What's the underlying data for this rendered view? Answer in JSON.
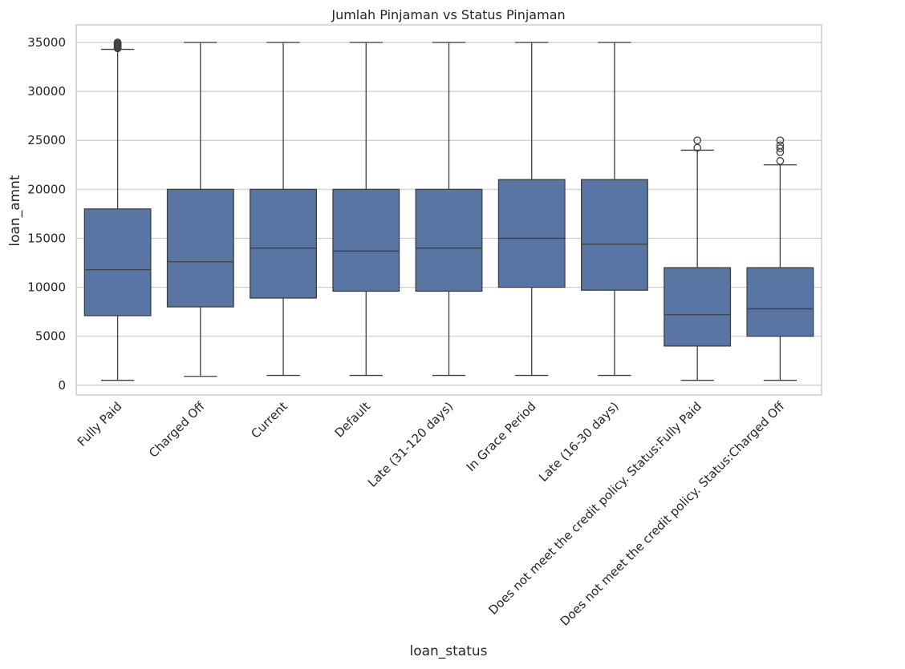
{
  "chart_data": {
    "type": "box",
    "title": "Jumlah Pinjaman vs Status Pinjaman",
    "xlabel": "loan_status",
    "ylabel": "loan_amnt",
    "ylim": [
      -1000,
      36800
    ],
    "yticks": [
      0,
      5000,
      10000,
      15000,
      20000,
      25000,
      30000,
      35000
    ],
    "grid": true,
    "box_color": "#5975A4",
    "line_color": "#3F3F3F",
    "categories": [
      "Fully Paid",
      "Charged Off",
      "Current",
      "Default",
      "Late (31-120 days)",
      "In Grace Period",
      "Late (16-30 days)",
      "Does not meet the credit policy. Status:Fully Paid",
      "Does not meet the credit policy. Status:Charged Off"
    ],
    "boxes": [
      {
        "whisker_low": 500,
        "q1": 7100,
        "median": 11800,
        "q3": 18000,
        "whisker_high": 34300,
        "outliers": [
          34400,
          34500,
          34600,
          34700,
          34800,
          34900,
          35000
        ]
      },
      {
        "whisker_low": 900,
        "q1": 8000,
        "median": 12600,
        "q3": 20000,
        "whisker_high": 35000,
        "outliers": []
      },
      {
        "whisker_low": 1000,
        "q1": 8900,
        "median": 14000,
        "q3": 20000,
        "whisker_high": 35000,
        "outliers": []
      },
      {
        "whisker_low": 1000,
        "q1": 9600,
        "median": 13700,
        "q3": 20000,
        "whisker_high": 35000,
        "outliers": []
      },
      {
        "whisker_low": 1000,
        "q1": 9600,
        "median": 14000,
        "q3": 20000,
        "whisker_high": 35000,
        "outliers": []
      },
      {
        "whisker_low": 1000,
        "q1": 10000,
        "median": 15000,
        "q3": 21000,
        "whisker_high": 35000,
        "outliers": []
      },
      {
        "whisker_low": 1000,
        "q1": 9700,
        "median": 14400,
        "q3": 21000,
        "whisker_high": 35000,
        "outliers": []
      },
      {
        "whisker_low": 500,
        "q1": 4000,
        "median": 7200,
        "q3": 12000,
        "whisker_high": 24000,
        "outliers": [
          24250,
          25000
        ]
      },
      {
        "whisker_low": 500,
        "q1": 5000,
        "median": 7800,
        "q3": 12000,
        "whisker_high": 22500,
        "outliers": [
          22900,
          23800,
          24200,
          24500,
          25000
        ]
      }
    ]
  }
}
